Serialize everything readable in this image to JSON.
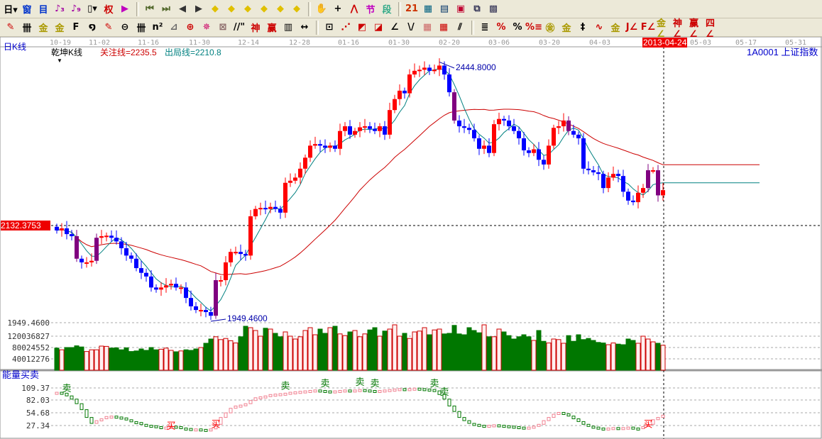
{
  "toolbar_row1": [
    {
      "name": "period-day-dropdown",
      "glyph": "日▾",
      "color": "#000"
    },
    {
      "name": "window-icon",
      "glyph": "窗",
      "color": "#0033cc"
    },
    {
      "name": "list-icon",
      "glyph": "目",
      "color": "#0033cc"
    },
    {
      "name": "indicator3-icon",
      "glyph": "♪₃",
      "color": "#a000a0"
    },
    {
      "name": "indicator9-icon",
      "glyph": "♪₉",
      "color": "#a000a0"
    },
    {
      "name": "candle-type-dropdown",
      "glyph": "▯▾",
      "color": "#000"
    },
    {
      "name": "weight-icon",
      "glyph": "权",
      "color": "#cc0000"
    },
    {
      "name": "flag-icon",
      "glyph": "▶",
      "color": "#c000c0"
    },
    {
      "sep": true
    },
    {
      "name": "first-bar-icon",
      "glyph": "⏮",
      "color": "#556b2f"
    },
    {
      "name": "last-bar-icon",
      "glyph": "⏭",
      "color": "#556b2f"
    },
    {
      "name": "prev-icon",
      "glyph": "◀",
      "color": "#333"
    },
    {
      "name": "next-icon",
      "glyph": "▶",
      "color": "#333"
    },
    {
      "name": "left-icon",
      "glyph": "◆",
      "color": "#e0c000"
    },
    {
      "name": "right-icon",
      "glyph": "◆",
      "color": "#e0c000"
    },
    {
      "name": "expand-icon",
      "glyph": "◆",
      "color": "#e0c000"
    },
    {
      "name": "shrink-icon",
      "glyph": "◆",
      "color": "#e0c000"
    },
    {
      "name": "zoom-in-icon",
      "glyph": "◆",
      "color": "#e0c000"
    },
    {
      "name": "zoom-out-icon",
      "glyph": "◆",
      "color": "#e0c000"
    },
    {
      "sep": true
    },
    {
      "name": "hand-icon",
      "glyph": "✋",
      "color": "#000"
    },
    {
      "name": "crosshair-icon",
      "glyph": "+",
      "color": "#000"
    },
    {
      "name": "line-draw-icon",
      "glyph": "⋀",
      "color": "#cc0000"
    },
    {
      "name": "section-icon",
      "glyph": "节",
      "color": "#c000c0"
    },
    {
      "name": "segment-icon",
      "glyph": "段",
      "color": "#3a8"
    },
    {
      "sep": true
    },
    {
      "name": "calendar-icon",
      "glyph": "21",
      "color": "#cc3300"
    },
    {
      "name": "calculator-icon",
      "glyph": "▦",
      "color": "#006080"
    },
    {
      "name": "notes-icon",
      "glyph": "▤",
      "color": "#003366"
    },
    {
      "name": "save-icon",
      "glyph": "▣",
      "color": "#c00030"
    },
    {
      "name": "network-icon",
      "glyph": "⧉",
      "color": "#335"
    },
    {
      "name": "computer-icon",
      "glyph": "▩",
      "color": "#335"
    }
  ],
  "toolbar_row2": [
    {
      "name": "pen-icon",
      "glyph": "✎",
      "color": "#c00"
    },
    {
      "name": "grid-icon",
      "glyph": "卌",
      "color": "#000"
    },
    {
      "name": "gold-line-icon",
      "glyph": "金",
      "color": "#aa9900"
    },
    {
      "name": "gold-line2-icon",
      "glyph": "金",
      "color": "#aa9900"
    },
    {
      "name": "f-line-icon",
      "glyph": "F",
      "color": "#000"
    },
    {
      "name": "spiral-icon",
      "glyph": "໑",
      "color": "#000"
    },
    {
      "name": "marker-icon",
      "glyph": "✎",
      "color": "#c00"
    },
    {
      "name": "circle-icon",
      "glyph": "⊖",
      "color": "#000"
    },
    {
      "name": "bars-icon",
      "glyph": "卌",
      "color": "#000"
    },
    {
      "name": "n2-icon",
      "glyph": "n²",
      "color": "#000"
    },
    {
      "name": "fan-icon",
      "glyph": "⊿",
      "color": "#666"
    },
    {
      "name": "target-icon",
      "glyph": "⊕",
      "color": "#c00"
    },
    {
      "name": "star-icon",
      "glyph": "✵",
      "color": "#c06"
    },
    {
      "name": "box-icon",
      "glyph": "⊠",
      "color": "#866"
    },
    {
      "name": "quote-icon",
      "glyph": "//\"",
      "color": "#000"
    },
    {
      "name": "shen-icon",
      "glyph": "神",
      "color": "#c00"
    },
    {
      "name": "ying-icon",
      "glyph": "赢",
      "color": "#c00"
    },
    {
      "name": "ruler-icon",
      "glyph": "▥",
      "color": "#000"
    },
    {
      "name": "width-icon",
      "glyph": "↔",
      "color": "#000"
    },
    {
      "sep": true
    },
    {
      "name": "frame-icon",
      "glyph": "⊡",
      "color": "#000"
    },
    {
      "name": "rays-icon",
      "glyph": "⋰",
      "color": "#c00"
    },
    {
      "name": "square-rays-icon",
      "glyph": "◩",
      "color": "#c00"
    },
    {
      "name": "square-rays2-icon",
      "glyph": "◪",
      "color": "#c00"
    },
    {
      "name": "angle-icon",
      "glyph": "∠",
      "color": "#000"
    },
    {
      "name": "v-icon",
      "glyph": "\\/",
      "color": "#000"
    },
    {
      "name": "mesh-icon",
      "glyph": "▦",
      "color": "#c66"
    },
    {
      "name": "mesh2-icon",
      "glyph": "▦",
      "color": "#c00"
    },
    {
      "name": "parallel-icon",
      "glyph": "⫽",
      "color": "#000"
    },
    {
      "sep": true
    },
    {
      "name": "levels-icon",
      "glyph": "≣",
      "color": "#000"
    },
    {
      "name": "percent-line-icon",
      "glyph": "%",
      "color": "#c00"
    },
    {
      "name": "percent-icon",
      "glyph": "%",
      "color": "#000"
    },
    {
      "name": "percent-lines-icon",
      "glyph": "%≡",
      "color": "#c00"
    },
    {
      "name": "gold-circle-icon",
      "glyph": "㊎",
      "color": "#aa9900"
    },
    {
      "name": "gold-lines-icon",
      "glyph": "金",
      "color": "#aa9900"
    },
    {
      "name": "tower-icon",
      "glyph": "‡",
      "color": "#000"
    },
    {
      "name": "wave-icon",
      "glyph": "∿",
      "color": "#c00"
    },
    {
      "name": "gold-box-icon",
      "glyph": "金",
      "color": "#aa9900"
    },
    {
      "name": "j-fan-icon",
      "glyph": "J∠",
      "color": "#c00"
    },
    {
      "name": "f-fan-icon",
      "glyph": "F∠",
      "color": "#c00"
    },
    {
      "name": "gold-fan-icon",
      "glyph": "金∠",
      "color": "#aa9900"
    },
    {
      "name": "shen-fan-icon",
      "glyph": "神∠",
      "color": "#c00"
    },
    {
      "name": "ying-fan-icon",
      "glyph": "赢∠",
      "color": "#c00"
    },
    {
      "name": "four-fan-icon",
      "glyph": "四∠",
      "color": "#c00"
    }
  ],
  "panel": {
    "period_label": "日K线",
    "indicator_name": "乾坤K线",
    "focus_line": "关注线=2235.5",
    "exit_line": "出局线=2210.8",
    "symbol": "1A0001 上证指数",
    "cursor_date": "2013-04-24",
    "cursor_price": "2132.3753",
    "high_label": "2444.8000",
    "low_label": "1949.4600",
    "sub_indicator": "能量买卖"
  },
  "colors": {
    "up": "#ff0000",
    "down": "#0000ff",
    "signal": "#800080",
    "ma_short": "#008080",
    "ma_long": "#cc0000",
    "vol_up": "#cc0000",
    "vol_down": "#007700",
    "sell": "#007700",
    "buy": "#ff0000"
  },
  "chart_data": [
    {
      "type": "candlestick",
      "x_ticks": [
        "10-19",
        "11-02",
        "11-16",
        "11-30",
        "12-14",
        "12-28",
        "01-16",
        "01-30",
        "02-20",
        "03-06",
        "03-20",
        "04-03",
        "05-03",
        "05-17",
        "05-31"
      ],
      "y_labels": [
        "1949.4600"
      ],
      "high": 2444.8,
      "low": 1949.46,
      "close": [
        2123,
        2127,
        2116,
        2112,
        2069,
        2062,
        2062,
        2065,
        2109,
        2112,
        2113,
        2109,
        2102,
        2089,
        2075,
        2069,
        2051,
        2042,
        2035,
        2014,
        2010,
        2014,
        2018,
        2021,
        2014,
        2014,
        1994,
        1978,
        1971,
        1971,
        1967,
        1960,
        2028,
        2028,
        2062,
        2082,
        2082,
        2078,
        2075,
        2150,
        2164,
        2166,
        2164,
        2168,
        2164,
        2157,
        2214,
        2218,
        2224,
        2241,
        2262,
        2285,
        2288,
        2285,
        2281,
        2285,
        2279,
        2313,
        2322,
        2306,
        2313,
        2320,
        2322,
        2317,
        2313,
        2322,
        2306,
        2353,
        2374,
        2390,
        2385,
        2421,
        2428,
        2430,
        2434,
        2428,
        2430,
        2438,
        2421,
        2387,
        2333,
        2322,
        2319,
        2315,
        2299,
        2279,
        2285,
        2271,
        2326,
        2336,
        2333,
        2322,
        2313,
        2299,
        2276,
        2271,
        2278,
        2258,
        2249,
        2285,
        2319,
        2322,
        2333,
        2313,
        2306,
        2299,
        2241,
        2238,
        2234,
        2231,
        2204,
        2224,
        2231,
        2227,
        2197,
        2180,
        2177,
        2195,
        2204,
        2238,
        2238,
        2190,
        2200
      ],
      "signal_bars": [
        4,
        8,
        32,
        80,
        103,
        119,
        121
      ]
    },
    {
      "type": "bar",
      "y_labels": [
        "120036827",
        "80024552",
        "40012276"
      ],
      "values_millions": [
        78,
        72,
        80,
        80,
        86,
        82,
        66,
        72,
        72,
        85,
        84,
        78,
        79,
        72,
        79,
        66,
        68,
        75,
        70,
        80,
        72,
        74,
        78,
        70,
        65,
        68,
        72,
        70,
        75,
        80,
        95,
        110,
        118,
        108,
        112,
        104,
        96,
        118,
        155,
        150,
        140,
        120,
        148,
        145,
        130,
        118,
        135,
        120,
        110,
        118,
        140,
        150,
        125,
        145,
        130,
        150,
        155,
        128,
        122,
        135,
        140,
        118,
        128,
        142,
        150,
        120,
        138,
        145,
        160,
        120,
        130,
        112,
        135,
        138,
        150,
        125,
        142,
        145,
        128,
        130,
        158,
        128,
        125,
        150,
        140,
        132,
        160,
        118,
        118,
        145,
        135,
        122,
        110,
        118,
        125,
        118,
        105,
        140,
        102,
        96,
        110,
        108,
        95,
        122,
        102,
        125,
        108,
        112,
        105,
        98,
        96,
        90,
        96,
        92,
        90,
        110,
        105,
        95,
        120,
        110,
        100,
        95,
        88
      ]
    },
    {
      "type": "bar",
      "name": "能量买卖",
      "y_labels": [
        "109.37",
        "82.03",
        "54.68",
        "27.34"
      ],
      "values": [
        100,
        98,
        92,
        85,
        75,
        62,
        45,
        32,
        38,
        42,
        47,
        48,
        46,
        44,
        40,
        36,
        34,
        30,
        28,
        27,
        25,
        24,
        24,
        26,
        25,
        22,
        21,
        20,
        20,
        19,
        18,
        20,
        30,
        45,
        55,
        65,
        70,
        72,
        75,
        82,
        88,
        90,
        92,
        95,
        96,
        97,
        98,
        100,
        101,
        102,
        103,
        104,
        105,
        104,
        103,
        102,
        103,
        104,
        105,
        104,
        105,
        106,
        105,
        104,
        103,
        104,
        105,
        106,
        107,
        108,
        107,
        108,
        109,
        108,
        107,
        106,
        103,
        95,
        85,
        70,
        58,
        45,
        38,
        32,
        30,
        28,
        27,
        28,
        29,
        28,
        27,
        26,
        25,
        24,
        23,
        24,
        26,
        30,
        38,
        45,
        52,
        56,
        53,
        48,
        42,
        36,
        30,
        26,
        24,
        22,
        21,
        22,
        23,
        22,
        23,
        24,
        22,
        21,
        25,
        30,
        40,
        45,
        50
      ],
      "sell_signals": {
        "label": "卖",
        "bars": [
          2,
          46,
          54,
          61,
          64,
          76,
          78
        ]
      },
      "buy_signals": {
        "label": "买",
        "bars": [
          23,
          32,
          119
        ]
      }
    }
  ]
}
